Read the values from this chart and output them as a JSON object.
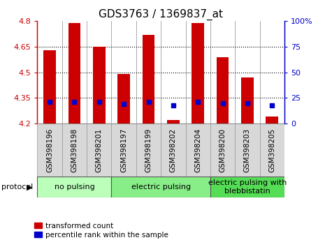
{
  "title": "GDS3763 / 1369837_at",
  "samples": [
    "GSM398196",
    "GSM398198",
    "GSM398201",
    "GSM398197",
    "GSM398199",
    "GSM398202",
    "GSM398204",
    "GSM398200",
    "GSM398203",
    "GSM398205"
  ],
  "red_values": [
    4.63,
    4.79,
    4.65,
    4.49,
    4.72,
    4.22,
    4.79,
    4.59,
    4.47,
    4.24
  ],
  "blue_values": [
    4.325,
    4.325,
    4.325,
    4.315,
    4.325,
    4.305,
    4.325,
    4.32,
    4.32,
    4.305
  ],
  "ymin": 4.2,
  "ymax": 4.8,
  "y2min": 0,
  "y2max": 100,
  "yticks": [
    4.2,
    4.35,
    4.5,
    4.65,
    4.8
  ],
  "y2ticks": [
    0,
    25,
    50,
    75,
    100
  ],
  "gridlines": [
    4.35,
    4.5,
    4.65
  ],
  "bar_width": 0.5,
  "red_color": "#cc0000",
  "blue_color": "#0000cc",
  "groups": [
    {
      "label": "no pulsing",
      "start": 0,
      "end": 3,
      "color": "#bbffbb"
    },
    {
      "label": "electric pulsing",
      "start": 3,
      "end": 7,
      "color": "#88ee88"
    },
    {
      "label": "electric pulsing with\nblebbistatin",
      "start": 7,
      "end": 10,
      "color": "#55dd55"
    }
  ],
  "legend_red": "transformed count",
  "legend_blue": "percentile rank within the sample",
  "protocol_label": "protocol",
  "title_fontsize": 11,
  "tick_fontsize": 8,
  "label_fontsize": 7.5,
  "group_fontsize": 8
}
